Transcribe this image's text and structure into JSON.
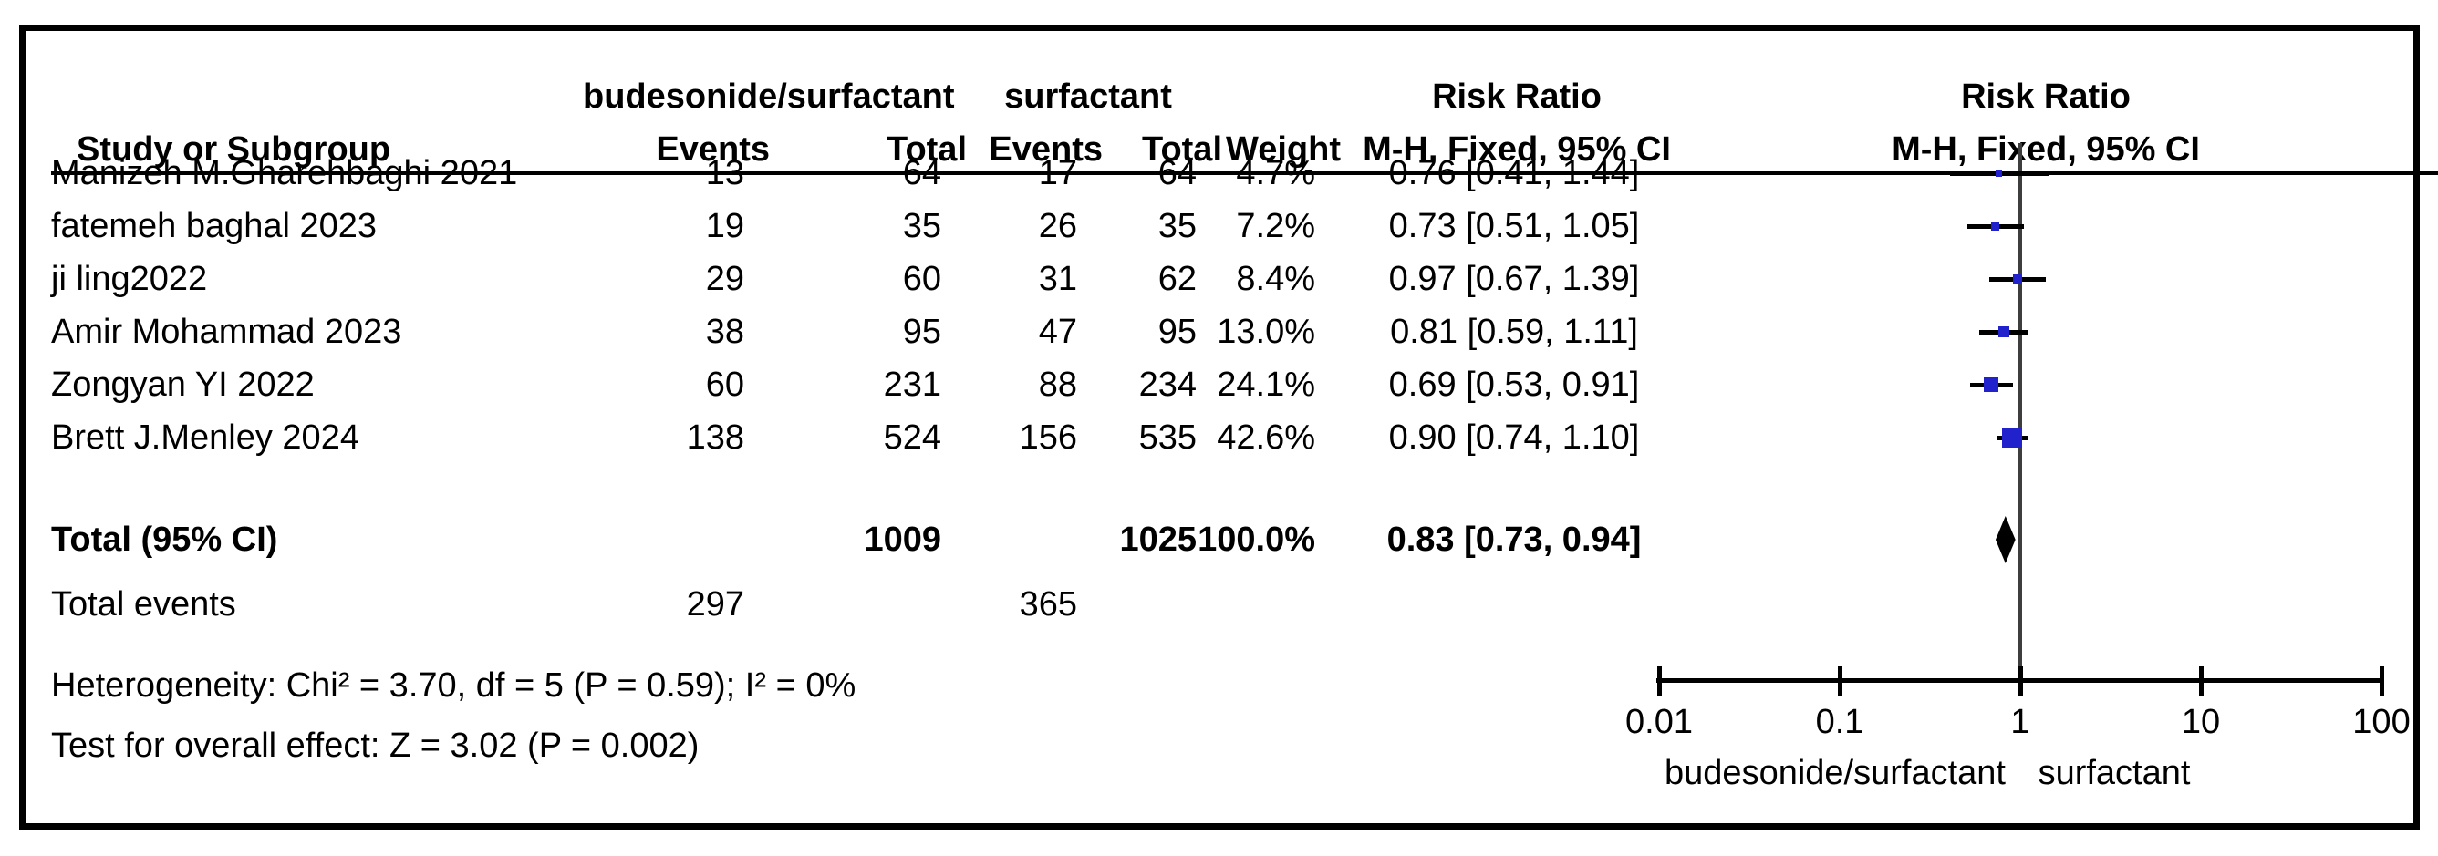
{
  "header": {
    "group1": "budesonide/surfactant",
    "group2": "surfactant",
    "study_col": "Study or Subgroup",
    "events": "Events",
    "total": "Total",
    "weight": "Weight",
    "risk_ratio": "Risk Ratio",
    "method": "M-H, Fixed, 95% CI"
  },
  "colors": {
    "marker_blue": "#2222cc",
    "line_black": "#000000",
    "center_line_gray": "#3d3d3d"
  },
  "chart_data": {
    "type": "forest",
    "effect_measure": "Risk Ratio",
    "model": "M-H, Fixed, 95% CI",
    "x_scale": "log10",
    "x_ticks": [
      0.01,
      0.1,
      1,
      10,
      100
    ],
    "x_axis_left_label": "budesonide/surfactant",
    "x_axis_right_label": "surfactant",
    "studies": [
      {
        "name": "Manizeh M.Gharehbaghi 2021",
        "events1": 13,
        "total1": 64,
        "events2": 17,
        "total2": 64,
        "weight": "4.7%",
        "weight_pct": 4.7,
        "rr": 0.76,
        "ci_low": 0.41,
        "ci_high": 1.44,
        "rr_text": "0.76 [0.41, 1.44]"
      },
      {
        "name": "fatemeh baghal 2023",
        "events1": 19,
        "total1": 35,
        "events2": 26,
        "total2": 35,
        "weight": "7.2%",
        "weight_pct": 7.2,
        "rr": 0.73,
        "ci_low": 0.51,
        "ci_high": 1.05,
        "rr_text": "0.73 [0.51, 1.05]"
      },
      {
        "name": "ji ling2022",
        "events1": 29,
        "total1": 60,
        "events2": 31,
        "total2": 62,
        "weight": "8.4%",
        "weight_pct": 8.4,
        "rr": 0.97,
        "ci_low": 0.67,
        "ci_high": 1.39,
        "rr_text": "0.97 [0.67, 1.39]"
      },
      {
        "name": "Amir Mohammad 2023",
        "events1": 38,
        "total1": 95,
        "events2": 47,
        "total2": 95,
        "weight": "13.0%",
        "weight_pct": 13.0,
        "rr": 0.81,
        "ci_low": 0.59,
        "ci_high": 1.11,
        "rr_text": "0.81 [0.59, 1.11]"
      },
      {
        "name": "Zongyan YI 2022",
        "events1": 60,
        "total1": 231,
        "events2": 88,
        "total2": 234,
        "weight": "24.1%",
        "weight_pct": 24.1,
        "rr": 0.69,
        "ci_low": 0.53,
        "ci_high": 0.91,
        "rr_text": "0.69 [0.53, 0.91]"
      },
      {
        "name": "Brett J.Menley 2024",
        "events1": 138,
        "total1": 524,
        "events2": 156,
        "total2": 535,
        "weight": "42.6%",
        "weight_pct": 42.6,
        "rr": 0.9,
        "ci_low": 0.74,
        "ci_high": 1.1,
        "rr_text": "0.90 [0.74, 1.10]"
      }
    ],
    "total": {
      "label": "Total (95% CI)",
      "total1": 1009,
      "total2": 1025,
      "weight": "100.0%",
      "rr": 0.83,
      "ci_low": 0.73,
      "ci_high": 0.94,
      "rr_text": "0.83 [0.73, 0.94]"
    },
    "total_events": {
      "label": "Total events",
      "events1": 297,
      "events2": 365
    },
    "heterogeneity": "Heterogeneity: Chi² = 3.70, df = 5 (P = 0.59); I² = 0%",
    "overall_effect": "Test for overall effect: Z = 3.02 (P = 0.002)"
  }
}
